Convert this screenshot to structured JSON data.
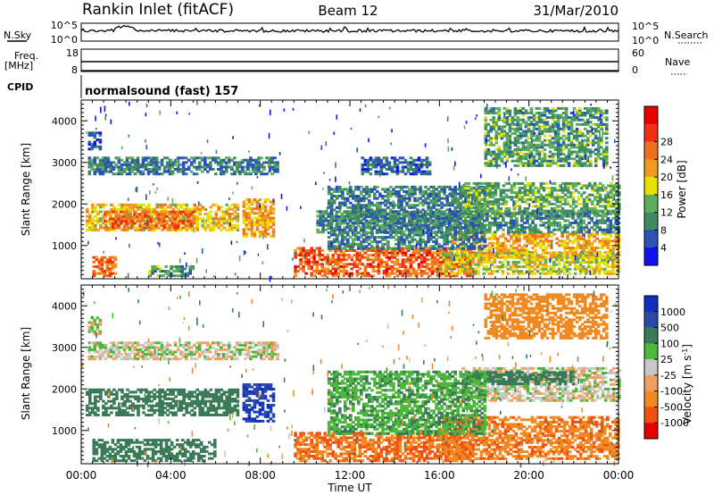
{
  "header": {
    "title": "Rankin Inlet (fitACF)",
    "beam": "Beam 12",
    "date": "31/Mar/2010"
  },
  "panels": {
    "nsky": {
      "left_label": "N.Sky",
      "left_ticks": [
        "10^5",
        "10^0"
      ],
      "right_label": "N.Search",
      "right_ticks": [
        "10^5",
        "10^0"
      ]
    },
    "freq": {
      "left_label_top": "Freq.",
      "left_label_unit": "[MHz]",
      "left_ticks": [
        "18",
        "8"
      ],
      "right_label": "Nave",
      "right_ticks": [
        "60",
        "0"
      ]
    },
    "cpid": {
      "label": "CPID",
      "text": "normalsound (fast) 157"
    }
  },
  "colors": {
    "power": [
      "#1010f0",
      "#2a52b8",
      "#3f8a63",
      "#5cae5c",
      "#e8e000",
      "#f09a20",
      "#f07020",
      "#f03010",
      "#e80000"
    ],
    "velocity": [
      "#1030c0",
      "#2a4aa8",
      "#3a7a58",
      "#4cb83a",
      "#c8c8c8",
      "#f0a060",
      "#f08a20",
      "#f05010",
      "#e80000"
    ]
  },
  "chart_data": [
    {
      "type": "heatmap",
      "name": "power",
      "ylabel": "Slant Range [km]",
      "xlabel": "",
      "x_ticks": [
        "00:00",
        "04:00",
        "08:00",
        "12:00",
        "16:00",
        "20:00",
        "00:00"
      ],
      "y_ticks": [
        1000,
        2000,
        3000,
        4000
      ],
      "ylim": [
        200,
        4500
      ],
      "xlim_hours": [
        0,
        24
      ],
      "colorbar": {
        "label": "Power [dB]",
        "ticks": [
          "4",
          "8",
          "12",
          "16",
          "20",
          "24",
          "28"
        ],
        "range": [
          0,
          30
        ]
      },
      "regions": [
        {
          "t": [
            0.2,
            7.0
          ],
          "r": [
            1350,
            2000
          ],
          "v": 20
        },
        {
          "t": [
            1.0,
            5.0
          ],
          "r": [
            1400,
            1800
          ],
          "v": 26
        },
        {
          "t": [
            7.2,
            8.6
          ],
          "r": [
            1200,
            2100
          ],
          "v": 22
        },
        {
          "t": [
            0.3,
            8.8
          ],
          "r": [
            2700,
            3100
          ],
          "v": 9
        },
        {
          "t": [
            0.3,
            0.8
          ],
          "r": [
            3300,
            3700
          ],
          "v": 6
        },
        {
          "t": [
            0.5,
            1.5
          ],
          "r": [
            250,
            700
          ],
          "v": 26
        },
        {
          "t": [
            3.0,
            5.0
          ],
          "r": [
            250,
            500
          ],
          "v": 12
        },
        {
          "t": [
            9.5,
            17.5
          ],
          "r": [
            250,
            950
          ],
          "v": 27
        },
        {
          "t": [
            16.5,
            24.0
          ],
          "r": [
            700,
            1300
          ],
          "v": 22
        },
        {
          "t": [
            16.0,
            24.0
          ],
          "r": [
            300,
            800
          ],
          "v": 18
        },
        {
          "t": [
            11.0,
            18.0
          ],
          "r": [
            900,
            2400
          ],
          "v": 9
        },
        {
          "t": [
            17.0,
            24.0
          ],
          "r": [
            1700,
            2500
          ],
          "v": 13
        },
        {
          "t": [
            12.5,
            15.5
          ],
          "r": [
            2700,
            3100
          ],
          "v": 7
        },
        {
          "t": [
            18.0,
            23.5
          ],
          "r": [
            2900,
            4300
          ],
          "v": 12
        },
        {
          "t": [
            10.5,
            24.0
          ],
          "r": [
            1300,
            1800
          ],
          "v": 10
        }
      ]
    },
    {
      "type": "heatmap",
      "name": "velocity",
      "ylabel": "Slant Range [km]",
      "xlabel": "Time UT",
      "x_ticks": [
        "00:00",
        "04:00",
        "08:00",
        "12:00",
        "16:00",
        "20:00",
        "00:00"
      ],
      "y_ticks": [
        1000,
        2000,
        3000,
        4000
      ],
      "ylim": [
        200,
        4500
      ],
      "xlim_hours": [
        0,
        24
      ],
      "colorbar": {
        "label": "Velocity [m s^-1]",
        "ticks": [
          "1000",
          "500",
          "100",
          "25",
          "-25",
          "-100",
          "-500",
          "-1000"
        ],
        "range": [
          -1000,
          1000
        ]
      },
      "regions": [
        {
          "t": [
            0.2,
            7.0
          ],
          "r": [
            1350,
            2000
          ],
          "v": 200
        },
        {
          "t": [
            7.2,
            8.6
          ],
          "r": [
            1200,
            2100
          ],
          "v": 600
        },
        {
          "t": [
            0.3,
            8.8
          ],
          "r": [
            2700,
            3100
          ],
          "v": 0
        },
        {
          "t": [
            0.3,
            0.8
          ],
          "r": [
            3300,
            3700
          ],
          "v": 0
        },
        {
          "t": [
            9.5,
            17.5
          ],
          "r": [
            250,
            950
          ],
          "v": -300
        },
        {
          "t": [
            16.0,
            24.0
          ],
          "r": [
            300,
            1300
          ],
          "v": -250
        },
        {
          "t": [
            17.0,
            24.0
          ],
          "r": [
            1700,
            2500
          ],
          "v": 0
        },
        {
          "t": [
            17.0,
            22.0
          ],
          "r": [
            2100,
            2400
          ],
          "v": 150
        },
        {
          "t": [
            18.0,
            23.5
          ],
          "r": [
            3200,
            4300
          ],
          "v": -200
        },
        {
          "t": [
            0.5,
            6.0
          ],
          "r": [
            250,
            800
          ],
          "v": 120
        },
        {
          "t": [
            11.0,
            18.0
          ],
          "r": [
            900,
            2400
          ],
          "v": 50
        }
      ]
    }
  ]
}
